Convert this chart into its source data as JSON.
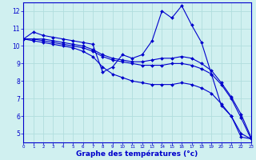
{
  "xlabel": "Graphe des températures (°c)",
  "background_color": "#d0f0f0",
  "grid_color": "#b0dede",
  "line_color": "#0000cc",
  "hours": [
    0,
    1,
    2,
    3,
    4,
    5,
    6,
    7,
    8,
    9,
    10,
    11,
    12,
    13,
    14,
    15,
    16,
    17,
    18,
    19,
    20,
    21,
    22,
    23
  ],
  "line1": [
    10.4,
    10.8,
    10.6,
    10.5,
    10.4,
    10.3,
    10.2,
    10.1,
    8.5,
    8.8,
    9.5,
    9.3,
    9.5,
    10.3,
    12.0,
    11.6,
    12.3,
    11.2,
    10.2,
    8.4,
    6.6,
    6.0,
    4.8,
    4.7
  ],
  "line2": [
    10.4,
    10.4,
    10.4,
    10.3,
    10.2,
    10.1,
    10.0,
    9.8,
    9.5,
    9.3,
    9.2,
    9.1,
    9.1,
    9.2,
    9.3,
    9.3,
    9.4,
    9.3,
    9.0,
    8.6,
    7.9,
    7.1,
    6.1,
    4.8
  ],
  "line3": [
    10.4,
    10.4,
    10.3,
    10.2,
    10.1,
    10.0,
    9.9,
    9.7,
    9.4,
    9.2,
    9.1,
    9.0,
    8.9,
    8.9,
    8.9,
    9.0,
    9.0,
    8.9,
    8.7,
    8.4,
    7.8,
    7.0,
    5.9,
    4.7
  ],
  "line4": [
    10.4,
    10.3,
    10.2,
    10.1,
    10.0,
    9.9,
    9.7,
    9.4,
    8.8,
    8.4,
    8.2,
    8.0,
    7.9,
    7.8,
    7.8,
    7.8,
    7.9,
    7.8,
    7.6,
    7.3,
    6.7,
    6.0,
    5.0,
    4.7
  ],
  "ylim": [
    4.5,
    12.5
  ],
  "yticks": [
    5,
    6,
    7,
    8,
    9,
    10,
    11,
    12
  ],
  "xlim": [
    0,
    23
  ]
}
